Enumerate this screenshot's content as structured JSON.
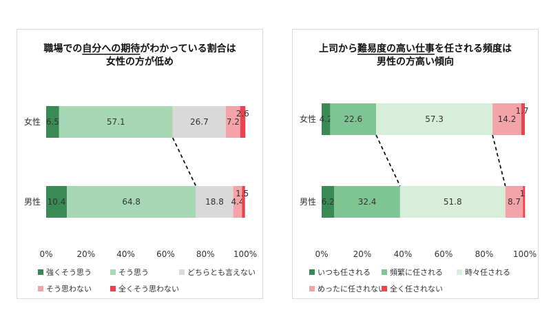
{
  "chart_data": [
    {
      "type": "bar",
      "orientation": "horizontal",
      "stacked": "percent",
      "title_lines": [
        "職場での自分への期待がわかっている割合は",
        "女性の方が低め"
      ],
      "title_underline": "自分への期待",
      "categories": [
        "女性",
        "男性"
      ],
      "xlim": [
        0,
        100
      ],
      "x_ticks": [
        "0%",
        "20%",
        "40%",
        "60%",
        "80%",
        "100%"
      ],
      "grid": false,
      "legend_position": "bottom",
      "connector": "between 2nd and 3rd segment boundaries (dashed)",
      "series": [
        {
          "name": "強くそう思う",
          "color": "#3a8a55",
          "values": [
            6.5,
            10.4
          ]
        },
        {
          "name": "そう思う",
          "color": "#a8d8b3",
          "values": [
            57.1,
            64.8
          ]
        },
        {
          "name": "どちらとも言えない",
          "color": "#d9d9d9",
          "values": [
            26.7,
            18.8
          ]
        },
        {
          "name": "そう思わない",
          "color": "#f4a3a8",
          "values": [
            7.2,
            4.4
          ]
        },
        {
          "name": "全くそう思わない",
          "color": "#e8434f",
          "values": [
            2.6,
            1.5
          ]
        }
      ]
    },
    {
      "type": "bar",
      "orientation": "horizontal",
      "stacked": "percent",
      "title_lines": [
        "上司から難易度の高い仕事を任される頻度は",
        "男性の方高い傾向"
      ],
      "title_underline": "難易度の高い仕事",
      "categories": [
        "女性",
        "男性"
      ],
      "xlim": [
        0,
        100
      ],
      "x_ticks": [
        "0%",
        "20%",
        "40%",
        "60%",
        "80%",
        "100%"
      ],
      "grid": false,
      "legend_position": "bottom",
      "connector": "between 2nd/3rd and 3rd/4th segment boundaries (dashed)",
      "series": [
        {
          "name": "いつも任される",
          "color": "#3a8a55",
          "values": [
            4.2,
            6.2
          ]
        },
        {
          "name": "頻繁に任される",
          "color": "#7fc593",
          "values": [
            22.6,
            32.4
          ]
        },
        {
          "name": "時々任される",
          "color": "#d7eedb",
          "values": [
            57.3,
            51.8
          ]
        },
        {
          "name": "めったに任されない",
          "color": "#f4a3a8",
          "values": [
            14.2,
            8.7
          ]
        },
        {
          "name": "全く任されない",
          "color": "#e8434f",
          "values": [
            1.7,
            1.0
          ]
        }
      ]
    }
  ]
}
